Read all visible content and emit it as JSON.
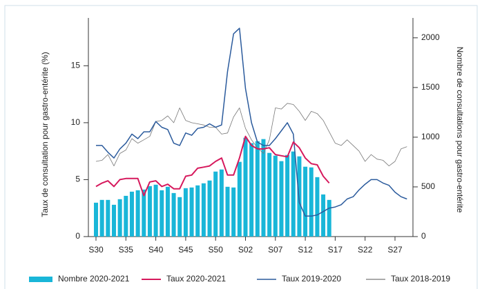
{
  "chart_data": {
    "type": "combo",
    "y_label": "Taux de consultation pour gastro-entérite (%)",
    "y2_label": "Nombre de consultations pour gastro-entérite",
    "categories": [
      "S30",
      null,
      null,
      null,
      null,
      "S35",
      null,
      null,
      null,
      null,
      "S40",
      null,
      null,
      null,
      null,
      "S45",
      null,
      null,
      null,
      null,
      "S50",
      null,
      null,
      null,
      null,
      "S02",
      null,
      null,
      null,
      null,
      "S07",
      null,
      null,
      null,
      null,
      "S12",
      null,
      null,
      null,
      null,
      "S17",
      null,
      null,
      null,
      null,
      "S22",
      null,
      null,
      null,
      null,
      "S27",
      null,
      null
    ],
    "ylim": [
      0,
      19.2
    ],
    "yticks": [
      0,
      5,
      10,
      15
    ],
    "y2lim": [
      0,
      2200
    ],
    "y2ticks": [
      0,
      500,
      1000,
      1500,
      2000
    ],
    "legend": "bottom",
    "series": [
      {
        "name": "Nombre 2020-2021",
        "type": "bar",
        "axis": "y2",
        "color": "#19b6d8",
        "values": [
          341,
          369,
          369,
          320,
          376,
          410,
          452,
          466,
          473,
          508,
          522,
          466,
          501,
          438,
          397,
          487,
          494,
          515,
          536,
          564,
          654,
          675,
          501,
          494,
          752,
          995,
          940,
          960,
          981,
          842,
          814,
          759,
          821,
          856,
          807,
          703,
          696,
          598,
          424,
          369,
          null,
          null,
          null,
          null,
          null,
          null,
          null,
          null,
          null,
          null,
          null,
          null,
          null
        ]
      },
      {
        "name": "Taux 2020-2021",
        "type": "line",
        "color": "#d6185c",
        "width": 2,
        "values": [
          4.4,
          4.7,
          4.9,
          4.4,
          5.0,
          5.1,
          5.1,
          5.1,
          3.6,
          4.8,
          4.9,
          4.4,
          4.6,
          4.2,
          4.2,
          5.3,
          5.4,
          6.0,
          6.1,
          6.2,
          6.6,
          6.9,
          5.4,
          5.4,
          6.9,
          8.8,
          8.0,
          7.7,
          7.7,
          7.8,
          7.2,
          7.1,
          7.0,
          8.3,
          7.8,
          6.9,
          6.4,
          6.3,
          5.3,
          4.7,
          null,
          null,
          null,
          null,
          null,
          null,
          null,
          null,
          null,
          null,
          null,
          null,
          null
        ]
      },
      {
        "name": "Taux 2019-2020",
        "type": "line",
        "color": "#2a5a9c",
        "width": 1.5,
        "values": [
          8.0,
          8.0,
          7.4,
          6.9,
          7.7,
          8.2,
          9.0,
          8.6,
          9.2,
          9.2,
          10.1,
          9.6,
          9.4,
          8.2,
          8.0,
          9.1,
          8.9,
          9.5,
          9.6,
          9.9,
          9.6,
          9.8,
          14.5,
          17.8,
          18.3,
          13.0,
          10.0,
          8.3,
          8.0,
          8.0,
          8.6,
          9.3,
          10.0,
          9.0,
          3.0,
          1.8,
          1.8,
          1.9,
          2.2,
          2.5,
          2.6,
          2.8,
          3.3,
          3.5,
          4.1,
          4.6,
          5.0,
          5.0,
          4.7,
          4.5,
          3.9,
          3.5,
          3.3
        ]
      },
      {
        "name": "Taux 2018-2019",
        "type": "line",
        "color": "#777777",
        "width": 0.8,
        "values": [
          6.6,
          6.7,
          7.2,
          6.2,
          7.3,
          7.6,
          8.6,
          8.2,
          8.5,
          8.8,
          10.1,
          10.2,
          10.6,
          10.0,
          11.3,
          10.2,
          10.0,
          9.9,
          9.8,
          9.6,
          9.6,
          9.0,
          9.1,
          10.5,
          11.3,
          9.5,
          8.5,
          7.8,
          7.3,
          8.5,
          11.3,
          11.2,
          11.7,
          11.6,
          11.0,
          10.2,
          11.0,
          10.8,
          10.2,
          9.2,
          8.2,
          8.0,
          8.5,
          8.0,
          7.5,
          6.6,
          7.2,
          6.8,
          6.7,
          6.2,
          6.6,
          7.7,
          7.9
        ]
      }
    ]
  }
}
